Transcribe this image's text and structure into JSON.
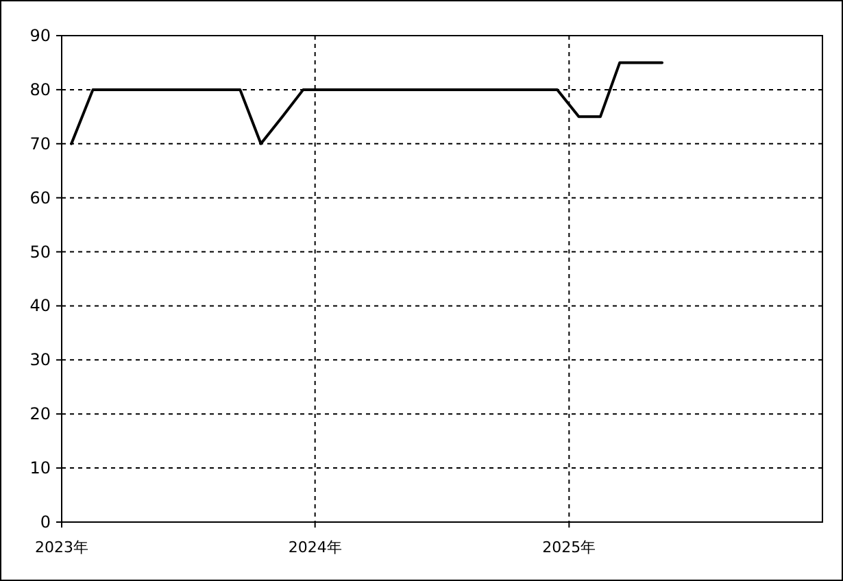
{
  "chart_data": {
    "type": "line",
    "color": "#000000",
    "line_style": "solid",
    "grid": true,
    "x": [
      "2023-01-15",
      "2023-02-15",
      "2023-03-15",
      "2023-04-15",
      "2023-05-15",
      "2023-06-15",
      "2023-07-15",
      "2023-08-15",
      "2023-09-15",
      "2023-10-15",
      "2023-11-15",
      "2023-12-15",
      "2024-01-15",
      "2024-02-15",
      "2024-03-15",
      "2024-04-15",
      "2024-05-15",
      "2024-06-15",
      "2024-07-15",
      "2024-08-15",
      "2024-09-15",
      "2024-10-15",
      "2024-11-15",
      "2024-12-15",
      "2025-01-15",
      "2025-02-15",
      "2025-03-15",
      "2025-04-15",
      "2025-05-15"
    ],
    "values": [
      70,
      80,
      80,
      80,
      80,
      80,
      80,
      80,
      80,
      70,
      75,
      80,
      80,
      80,
      80,
      80,
      80,
      80,
      80,
      80,
      80,
      80,
      80,
      80,
      75,
      75,
      85,
      85,
      85
    ],
    "xlim": [
      "2023-01-01",
      "2026-01-01"
    ],
    "xticks": [
      {
        "value": "2023-01-01",
        "label": "2023年"
      },
      {
        "value": "2024-01-01",
        "label": "2024年"
      },
      {
        "value": "2025-01-01",
        "label": "2025年"
      }
    ],
    "ylim": [
      0,
      90
    ],
    "yticks": [
      0,
      10,
      20,
      30,
      40,
      50,
      60,
      70,
      80,
      90
    ]
  }
}
